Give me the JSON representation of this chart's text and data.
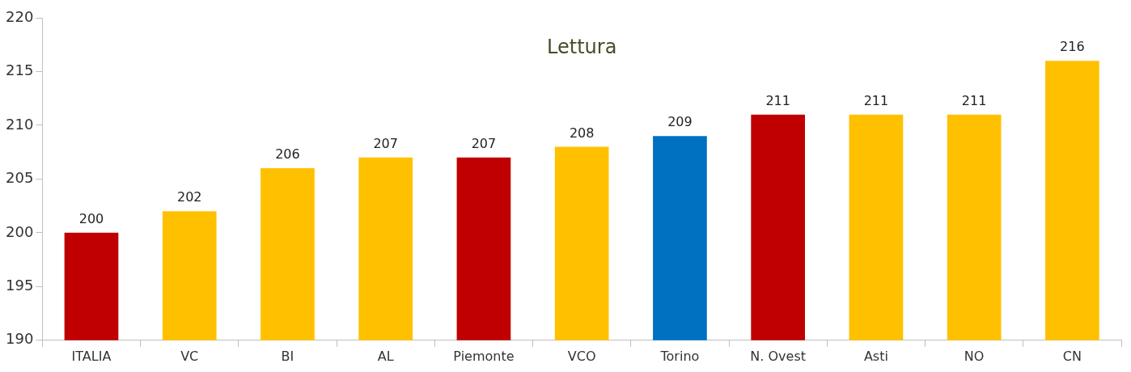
{
  "chart_data": {
    "type": "bar",
    "title": "Lettura",
    "categories": [
      "ITALIA",
      "VC",
      "BI",
      "AL",
      "Piemonte",
      "VCO",
      "Torino",
      "N. Ovest",
      "Asti",
      "NO",
      "CN"
    ],
    "values": [
      200,
      202,
      206,
      207,
      207,
      208,
      209,
      211,
      211,
      211,
      216
    ],
    "colors": [
      "#c00000",
      "#ffc000",
      "#ffc000",
      "#ffc000",
      "#c00000",
      "#ffc000",
      "#0070c0",
      "#c00000",
      "#ffc000",
      "#ffc000",
      "#ffc000"
    ],
    "ylim": [
      190,
      220
    ],
    "yticks": [
      190,
      195,
      200,
      205,
      210,
      215,
      220
    ],
    "grid": false,
    "legend": false,
    "data_labels": true
  }
}
